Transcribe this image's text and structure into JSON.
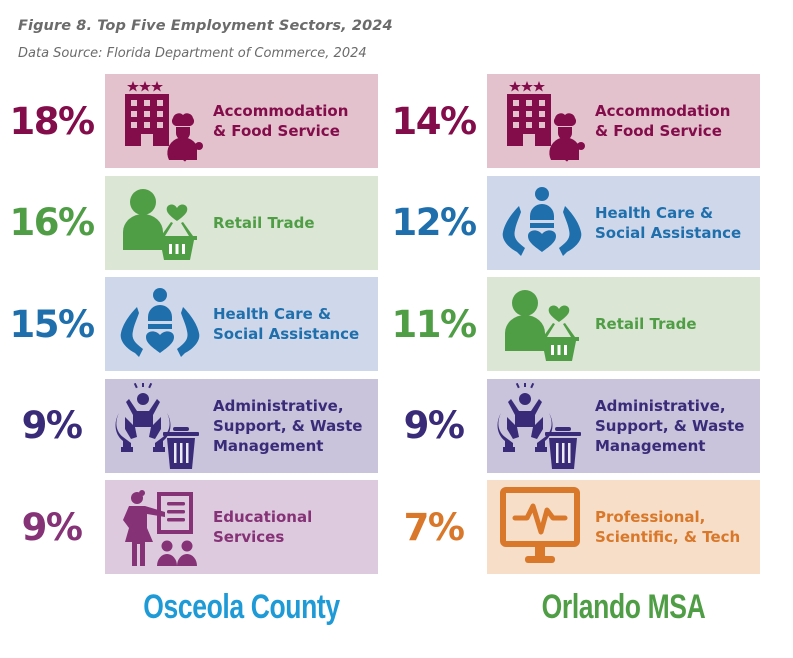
{
  "title": "Figure 8. Top Five Employment Sectors, 2024",
  "source": "Data Source: Florida Department of Commerce, 2024",
  "colors": {
    "accommodation": {
      "fg": "#830c4a",
      "bg": "#e4c2cd"
    },
    "retail": {
      "fg": "#4f9e46",
      "bg": "#dbe6d4"
    },
    "health": {
      "fg": "#1f6fad",
      "bg": "#cfd8ea"
    },
    "admin": {
      "fg": "#3a2b78",
      "bg": "#c9c3dc"
    },
    "education": {
      "fg": "#853276",
      "bg": "#decadf"
    },
    "professional": {
      "fg": "#d9782a",
      "bg": "#f6dec8"
    },
    "osceola": "#1e9ad6",
    "orlando": "#4f9e46"
  },
  "chart_data": {
    "type": "table",
    "title": "Figure 8. Top Five Employment Sectors, 2024",
    "subtitle": "Data Source: Florida Department of Commerce, 2024",
    "unit": "%",
    "series": [
      {
        "name": "Osceola County",
        "rows": [
          {
            "value": 18,
            "display": "18%",
            "sector": "Accommodation\n& Food Service",
            "icon": "hotel-chef-icon",
            "theme": "accommodation"
          },
          {
            "value": 16,
            "display": "16%",
            "sector": "Retail Trade",
            "icon": "shopper-basket-icon",
            "theme": "retail"
          },
          {
            "value": 15,
            "display": "15%",
            "sector": "Health Care &\nSocial Assistance",
            "icon": "caring-hands-icon",
            "theme": "health"
          },
          {
            "value": 9,
            "display": "9%",
            "sector": "Administrative,\nSupport, & Waste\nManagement",
            "icon": "support-waste-icon",
            "theme": "admin"
          },
          {
            "value": 9,
            "display": "9%",
            "sector": "Educational\nServices",
            "icon": "teacher-board-icon",
            "theme": "education"
          }
        ]
      },
      {
        "name": "Orlando MSA",
        "rows": [
          {
            "value": 14,
            "display": "14%",
            "sector": "Accommodation\n& Food Service",
            "icon": "hotel-chef-icon",
            "theme": "accommodation"
          },
          {
            "value": 12,
            "display": "12%",
            "sector": "Health Care &\nSocial Assistance",
            "icon": "caring-hands-icon",
            "theme": "health"
          },
          {
            "value": 11,
            "display": "11%",
            "sector": "Retail Trade",
            "icon": "shopper-basket-icon",
            "theme": "retail"
          },
          {
            "value": 9,
            "display": "9%",
            "sector": "Administrative,\nSupport, & Waste\nManagement",
            "icon": "support-waste-icon",
            "theme": "admin"
          },
          {
            "value": 7,
            "display": "7%",
            "sector": "Professional,\nScientific, & Tech",
            "icon": "monitor-pulse-icon",
            "theme": "professional"
          }
        ]
      }
    ]
  }
}
